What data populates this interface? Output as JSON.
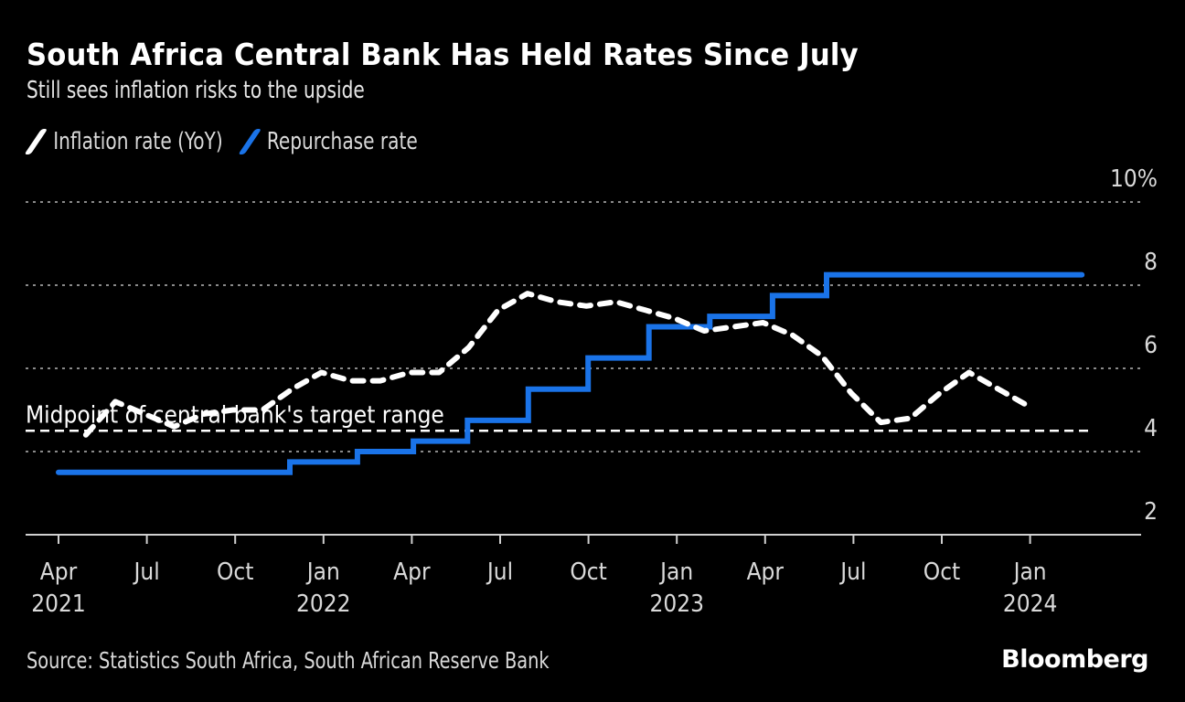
{
  "header": {
    "title": "South Africa Central Bank Has Held Rates Since July",
    "subtitle": "Still sees inflation risks to the upside"
  },
  "legend": [
    {
      "label": "Inflation rate (YoY)",
      "color": "#ffffff",
      "icon": "white-slash-swatch"
    },
    {
      "label": "Repurchase rate",
      "color": "#1a73e8",
      "icon": "blue-slash-swatch"
    }
  ],
  "footer": {
    "source": "Source: Statistics South Africa, South African Reserve Bank",
    "brand": "Bloomberg"
  },
  "chart_data": {
    "type": "line",
    "title": "South Africa Central Bank Has Held Rates Since July",
    "subtitle": "Still sees inflation risks to the upside",
    "xlabel": "",
    "ylabel": "",
    "ylim": [
      2,
      10
    ],
    "yticks": [
      {
        "value": 10,
        "label": "10%"
      },
      {
        "value": 8,
        "label": "8"
      },
      {
        "value": 6,
        "label": "6"
      },
      {
        "value": 4,
        "label": "4"
      },
      {
        "value": 2,
        "label": "2"
      }
    ],
    "y_axis_side": "right",
    "grid": true,
    "legend_position": "top-left",
    "xticks": [
      {
        "month": "2021-04",
        "label": "Apr",
        "year_label": "2021"
      },
      {
        "month": "2021-07",
        "label": "Jul",
        "year_label": ""
      },
      {
        "month": "2021-10",
        "label": "Oct",
        "year_label": ""
      },
      {
        "month": "2022-01",
        "label": "Jan",
        "year_label": "2022"
      },
      {
        "month": "2022-04",
        "label": "Apr",
        "year_label": ""
      },
      {
        "month": "2022-07",
        "label": "Jul",
        "year_label": ""
      },
      {
        "month": "2022-10",
        "label": "Oct",
        "year_label": ""
      },
      {
        "month": "2023-01",
        "label": "Jan",
        "year_label": "2023"
      },
      {
        "month": "2023-04",
        "label": "Apr",
        "year_label": ""
      },
      {
        "month": "2023-07",
        "label": "Jul",
        "year_label": ""
      },
      {
        "month": "2023-10",
        "label": "Oct",
        "year_label": ""
      },
      {
        "month": "2024-01",
        "label": "Jan",
        "year_label": "2024"
      }
    ],
    "series": [
      {
        "name": "Inflation rate (YoY)",
        "color": "#ffffff",
        "style": "dashed",
        "points": [
          {
            "date": "2021-04",
            "value": 4.4
          },
          {
            "date": "2021-05",
            "value": 5.2
          },
          {
            "date": "2021-06",
            "value": 4.9
          },
          {
            "date": "2021-07",
            "value": 4.6
          },
          {
            "date": "2021-08",
            "value": 4.9
          },
          {
            "date": "2021-09",
            "value": 5.0
          },
          {
            "date": "2021-10",
            "value": 5.0
          },
          {
            "date": "2021-11",
            "value": 5.5
          },
          {
            "date": "2021-12",
            "value": 5.9
          },
          {
            "date": "2022-01",
            "value": 5.7
          },
          {
            "date": "2022-02",
            "value": 5.7
          },
          {
            "date": "2022-03",
            "value": 5.9
          },
          {
            "date": "2022-04",
            "value": 5.9
          },
          {
            "date": "2022-05",
            "value": 6.5
          },
          {
            "date": "2022-06",
            "value": 7.4
          },
          {
            "date": "2022-07",
            "value": 7.8
          },
          {
            "date": "2022-08",
            "value": 7.6
          },
          {
            "date": "2022-09",
            "value": 7.5
          },
          {
            "date": "2022-10",
            "value": 7.6
          },
          {
            "date": "2022-11",
            "value": 7.4
          },
          {
            "date": "2022-12",
            "value": 7.2
          },
          {
            "date": "2023-01",
            "value": 6.9
          },
          {
            "date": "2023-02",
            "value": 7.0
          },
          {
            "date": "2023-03",
            "value": 7.1
          },
          {
            "date": "2023-04",
            "value": 6.8
          },
          {
            "date": "2023-05",
            "value": 6.3
          },
          {
            "date": "2023-06",
            "value": 5.4
          },
          {
            "date": "2023-07",
            "value": 4.7
          },
          {
            "date": "2023-08",
            "value": 4.8
          },
          {
            "date": "2023-09",
            "value": 5.4
          },
          {
            "date": "2023-10",
            "value": 5.9
          },
          {
            "date": "2023-11",
            "value": 5.5
          },
          {
            "date": "2023-12",
            "value": 5.1
          }
        ]
      },
      {
        "name": "Repurchase rate",
        "color": "#1a73e8",
        "style": "step",
        "steps": [
          {
            "date": "2021-04-01",
            "value": 3.5
          },
          {
            "date": "2021-11-18",
            "value": 3.75
          },
          {
            "date": "2022-01-27",
            "value": 4.0
          },
          {
            "date": "2022-03-24",
            "value": 4.25
          },
          {
            "date": "2022-05-19",
            "value": 4.75
          },
          {
            "date": "2022-07-21",
            "value": 5.5
          },
          {
            "date": "2022-09-22",
            "value": 6.25
          },
          {
            "date": "2022-11-24",
            "value": 7.0
          },
          {
            "date": "2023-01-26",
            "value": 7.25
          },
          {
            "date": "2023-03-30",
            "value": 7.75
          },
          {
            "date": "2023-05-25",
            "value": 8.25
          },
          {
            "date": "2024-02-15",
            "value": 8.25
          }
        ]
      }
    ],
    "annotations": [
      {
        "type": "hline",
        "value": 4.5,
        "label": "Midpoint of central bank's target range",
        "style": "dashed",
        "color": "#ffffff"
      }
    ]
  }
}
